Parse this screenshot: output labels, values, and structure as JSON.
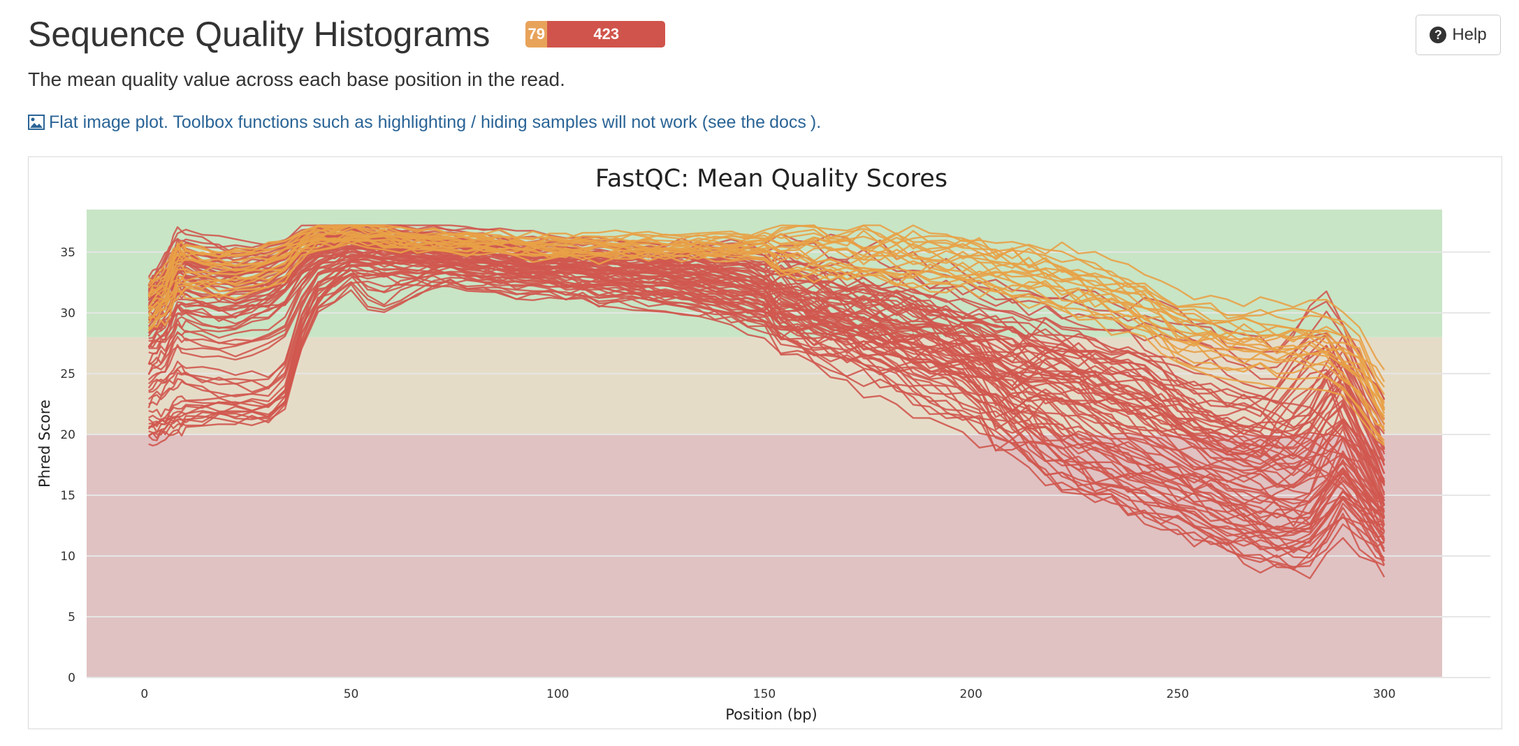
{
  "header": {
    "title": "Sequence Quality Histograms",
    "status_counts": [
      {
        "label": "79",
        "count": 79,
        "color": "#e8a35a"
      },
      {
        "label": "423",
        "count": 423,
        "color": "#d0544b"
      }
    ],
    "help_label": "Help"
  },
  "description": "The mean quality value across each base position in the read.",
  "flat_note": {
    "text": "Flat image plot. Toolbox functions such as highlighting / hiding samples will not work (see the ",
    "link": "docs",
    "suffix": ")."
  },
  "colors": {
    "good_zone": "#c8e5c6",
    "warn_zone": "#e5dcc8",
    "fail_zone": "#e0c2c3",
    "fail_line": "#d0584f",
    "warn_line": "#e8a146"
  },
  "chart_data": {
    "type": "line",
    "title": "FastQC: Mean Quality Scores",
    "xlabel": "Position (bp)",
    "ylabel": "Phred Score",
    "xlim": [
      -14,
      314
    ],
    "ylim": [
      0,
      38.5
    ],
    "x_ticks": [
      0,
      50,
      100,
      150,
      200,
      250,
      300
    ],
    "y_ticks": [
      0,
      5,
      10,
      15,
      20,
      25,
      30,
      35
    ],
    "zones": [
      {
        "name": "fail",
        "from": 0,
        "to": 20
      },
      {
        "name": "warn",
        "from": 20,
        "to": 28
      },
      {
        "name": "good",
        "from": 28,
        "to": 38.5
      }
    ],
    "grid": true,
    "legend": "none",
    "series_groups": [
      {
        "status": "fail",
        "count": 423,
        "profiles": [
          {
            "x": [
              1,
              5,
              8,
              20,
              33,
              40,
              50,
              70,
              100,
              130,
              145,
              160,
              180,
              200,
              210,
              230,
              250,
              275,
              285,
              295,
              300
            ],
            "y": [
              32,
              33,
              35,
              34,
              35,
              36.5,
              36.5,
              35.8,
              35,
              34.5,
              35,
              34,
              33,
              31,
              30,
              29,
              28,
              25,
              30,
              24,
              21
            ]
          },
          {
            "x": [
              1,
              5,
              8,
              20,
              33,
              40,
              50,
              70,
              100,
              130,
              145,
              160,
              180,
              200,
              210,
              220,
              240,
              260,
              280,
              290,
              300
            ],
            "y": [
              31,
              32,
              34,
              33,
              34,
              36,
              36,
              35.3,
              34.5,
              34,
              34,
              31,
              30,
              28,
              26,
              27,
              24,
              21,
              20,
              26,
              18
            ]
          },
          {
            "x": [
              1,
              5,
              8,
              20,
              33,
              40,
              50,
              70,
              100,
              130,
              145,
              160,
              180,
              200,
              210,
              220,
              240,
              260,
              280,
              290,
              300
            ],
            "y": [
              30,
              31,
              33,
              32,
              33,
              35.5,
              35.8,
              35,
              34,
              33.5,
              33,
              30,
              29,
              27,
              23,
              25,
              22,
              19,
              17,
              19,
              15
            ]
          },
          {
            "x": [
              1,
              5,
              8,
              20,
              33,
              40,
              50,
              70,
              100,
              130,
              145,
              160,
              180,
              200,
              207,
              215,
              230,
              250,
              270,
              282,
              290,
              300
            ],
            "y": [
              29,
              30,
              32,
              31,
              32,
              35,
              35.5,
              35,
              34,
              33,
              32,
              30,
              27,
              24,
              20,
              22,
              17,
              14,
              12,
              12,
              16,
              12
            ]
          },
          {
            "x": [
              1,
              5,
              8,
              20,
              33,
              40,
              50,
              70,
              100,
              130,
              145,
              160,
              180,
              200,
              210,
              220,
              240,
              255,
              270,
              282,
              290,
              300
            ],
            "y": [
              27,
              28,
              30,
              29,
              31,
              34,
              35,
              34.5,
              33.5,
              32.5,
              31,
              29,
              26,
              23,
              21,
              18,
              16,
              14,
              11,
              11,
              14,
              11
            ]
          },
          {
            "x": [
              1,
              5,
              8,
              20,
              33,
              40,
              50,
              70,
              100,
              130,
              145,
              160,
              180,
              200,
              215,
              230,
              245,
              260,
              272,
              280,
              290,
              300
            ],
            "y": [
              25,
              26,
              28,
              27,
              28,
              33,
              34.5,
              34,
              33,
              32,
              30.5,
              28,
              25,
              22,
              19,
              17,
              15,
              13,
              12,
              11,
              15,
              11
            ]
          },
          {
            "x": [
              1,
              5,
              8,
              20,
              33,
              40,
              50,
              70,
              100,
              130,
              150,
              165,
              180,
              195,
              210,
              225,
              240,
              255,
              270,
              280,
              290,
              300
            ],
            "y": [
              23,
              24,
              25,
              24,
              24,
              32,
              34,
              33.5,
              33,
              32,
              31,
              30,
              29,
              28,
              27,
              24,
              20,
              18,
              17,
              19,
              24,
              17
            ]
          },
          {
            "x": [
              1,
              5,
              8,
              20,
              33,
              40,
              50,
              70,
              100,
              130,
              150,
              165,
              180,
              195,
              210,
              225,
              240,
              255,
              270,
              280,
              290,
              300
            ],
            "y": [
              21,
              21,
              22,
              22,
              21.5,
              31,
              33.5,
              33,
              32,
              31,
              30,
              29,
              28,
              27,
              24,
              22,
              20,
              17,
              15,
              13,
              20,
              13
            ]
          },
          {
            "x": [
              1,
              5,
              8,
              20,
              33,
              40,
              50,
              56,
              70,
              100,
              130,
              150,
              170,
              190,
              210,
              225,
              240,
              255,
              270,
              285,
              300
            ],
            "y": [
              20,
              20.5,
              21,
              22,
              22,
              30,
              33,
              30.5,
              33,
              32,
              31,
              29,
              28,
              27,
              26,
              25,
              24,
              22,
              21,
              19,
              14
            ]
          },
          {
            "x": [
              1,
              5,
              8,
              20,
              33,
              40,
              50,
              70,
              100,
              130,
              150,
              165,
              185,
              205,
              220,
              240,
              260,
              280,
              290,
              300
            ],
            "y": [
              32,
              34,
              36,
              35,
              35,
              36.5,
              37,
              36.5,
              35.5,
              35,
              34,
              31,
              29,
              27,
              25,
              23,
              19,
              18,
              22,
              14
            ]
          },
          {
            "x": [
              1,
              5,
              8,
              20,
              33,
              40,
              50,
              70,
              100,
              130,
              150,
              160,
              175,
              190,
              205,
              220,
              235,
              250,
              265,
              280,
              290,
              300
            ],
            "y": [
              28,
              29,
              31,
              30,
              31,
              34.5,
              35.5,
              35,
              34,
              33,
              32,
              31,
              30,
              28,
              24,
              18,
              17,
              15,
              13,
              12,
              16,
              12
            ]
          },
          {
            "x": [
              1,
              5,
              8,
              20,
              33,
              40,
              50,
              70,
              100,
              130,
              150,
              165,
              180,
              195,
              210,
              225,
              240,
              255,
              270,
              285,
              300
            ],
            "y": [
              31,
              32,
              34,
              33,
              33,
              36,
              36.5,
              35.5,
              34.5,
              34,
              33,
              32,
              31,
              30,
              29,
              27,
              26,
              21,
              20,
              27,
              16
            ]
          }
        ]
      },
      {
        "status": "warn",
        "count": 79,
        "profiles": [
          {
            "x": [
              1,
              5,
              8,
              20,
              33,
              40,
              50,
              70,
              100,
              130,
              150,
              170,
              190,
              205,
              220,
              240,
              250,
              260,
              275,
              285,
              295,
              300
            ],
            "y": [
              31,
              32,
              35,
              34,
              35,
              36.5,
              36.5,
              36,
              35.5,
              35.5,
              35.5,
              35,
              34.5,
              34,
              33,
              31,
              29,
              28.5,
              28,
              28,
              25,
              22
            ]
          },
          {
            "x": [
              1,
              5,
              8,
              20,
              33,
              40,
              50,
              70,
              100,
              130,
              150,
              170,
              190,
              205,
              220,
              240,
              250,
              260,
              275,
              285,
              295,
              300
            ],
            "y": [
              30,
              31,
              33,
              33,
              34,
              36,
              36.5,
              35.8,
              35.3,
              35.2,
              35.3,
              34.7,
              34.2,
              33.7,
              32.5,
              30.5,
              28,
              27.5,
              27,
              27,
              24,
              21
            ]
          },
          {
            "x": [
              1,
              5,
              8,
              20,
              33,
              40,
              50,
              70,
              100,
              130,
              150,
              170,
              190,
              205,
              220,
              240,
              250,
              260,
              275,
              285,
              295,
              300
            ],
            "y": [
              29,
              30,
              32,
              32,
              33,
              35.8,
              36.3,
              35.6,
              35.1,
              35,
              35,
              34.4,
              34,
              33.4,
              32,
              30,
              27.3,
              26.8,
              26.2,
              26.2,
              23,
              20.5
            ]
          },
          {
            "x": [
              1,
              5,
              8,
              20,
              33,
              40,
              50,
              70,
              100,
              130,
              150,
              170,
              190,
              205,
              220,
              240,
              250,
              260,
              275,
              285,
              293,
              300
            ],
            "y": [
              32,
              33,
              35,
              34.5,
              35,
              36.4,
              36.6,
              36.2,
              35.7,
              35.8,
              36,
              35.5,
              35,
              34.5,
              33.5,
              32,
              30,
              29.5,
              29,
              29,
              28,
              23
            ]
          }
        ]
      }
    ]
  }
}
